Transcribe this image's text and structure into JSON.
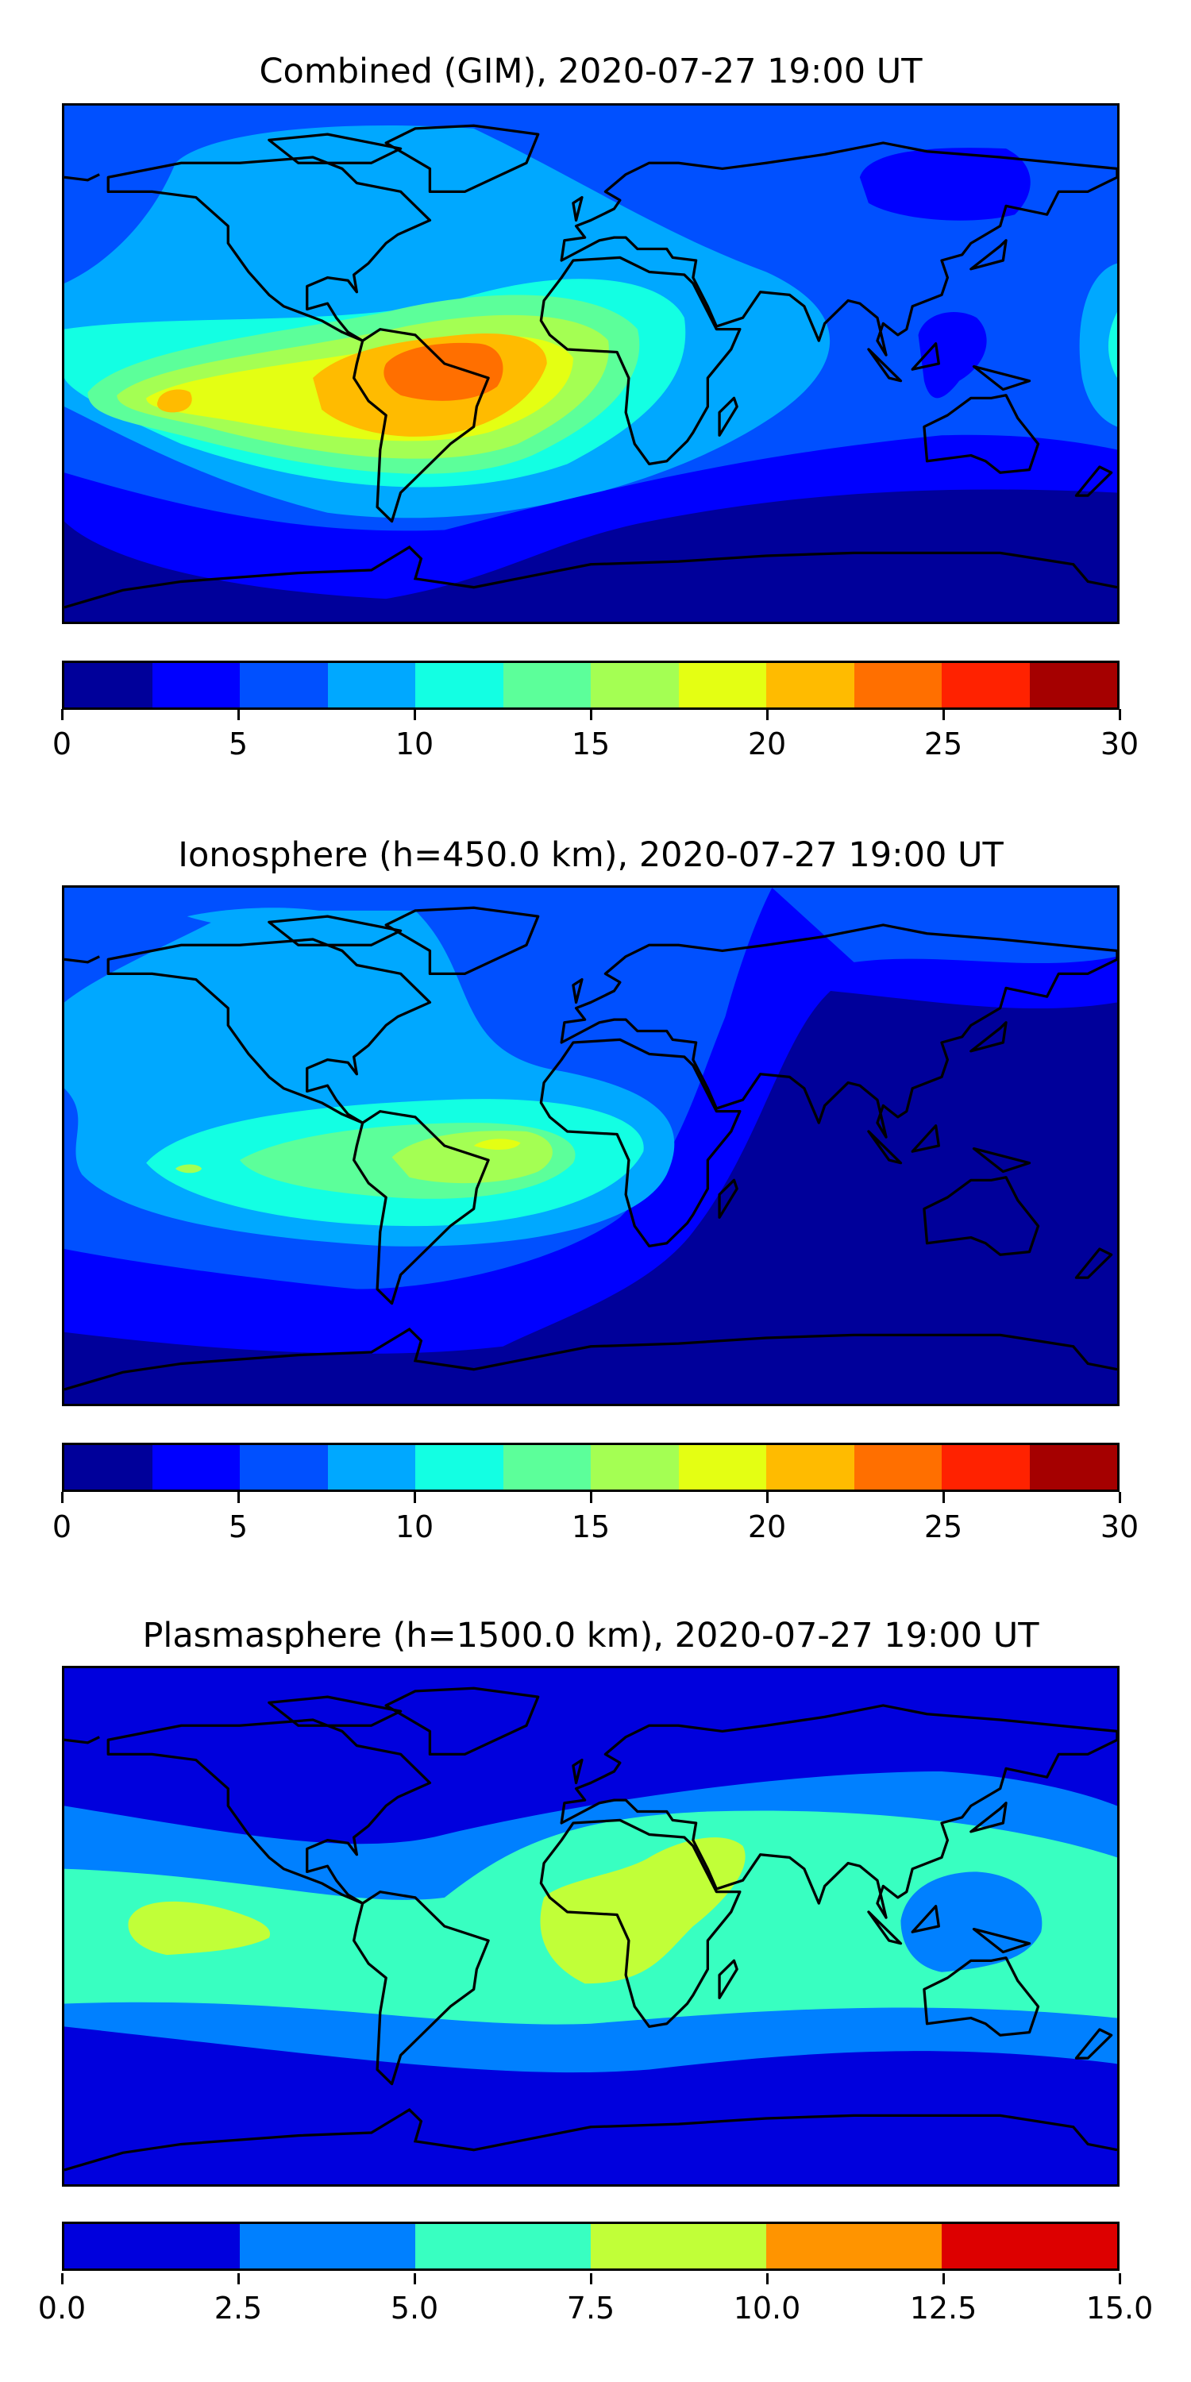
{
  "chart_data": [
    {
      "type": "heatmap",
      "title": "Combined (GIM), 2020-07-27 19:00 UT",
      "xlabel": "",
      "ylabel": "",
      "projection": "PlateCarree world map with coastlines",
      "colorbar": {
        "levels": [
          0,
          2.5,
          5,
          7.5,
          10,
          12.5,
          15,
          17.5,
          20,
          22.5,
          25,
          27.5,
          30
        ],
        "colors": [
          "#00009a",
          "#0000ff",
          "#0050ff",
          "#00a8ff",
          "#13ffe3",
          "#5cff9a",
          "#a4ff53",
          "#e4ff13",
          "#ffbb00",
          "#ff6f00",
          "#ff2200",
          "#a50000"
        ],
        "tick_values": [
          0,
          5,
          10,
          15,
          20,
          25,
          30
        ],
        "tick_labels": [
          "0",
          "5",
          "10",
          "15",
          "20",
          "25",
          "30"
        ],
        "range": [
          0,
          30
        ]
      }
    },
    {
      "type": "heatmap",
      "title": "Ionosphere  (h=450.0 km), 2020-07-27 19:00 UT",
      "xlabel": "",
      "ylabel": "",
      "projection": "PlateCarree world map with coastlines",
      "colorbar": {
        "levels": [
          0,
          2.5,
          5,
          7.5,
          10,
          12.5,
          15,
          17.5,
          20,
          22.5,
          25,
          27.5,
          30
        ],
        "colors": [
          "#00009a",
          "#0000ff",
          "#0050ff",
          "#00a8ff",
          "#13ffe3",
          "#5cff9a",
          "#a4ff53",
          "#e4ff13",
          "#ffbb00",
          "#ff6f00",
          "#ff2200",
          "#a50000"
        ],
        "tick_values": [
          0,
          5,
          10,
          15,
          20,
          25,
          30
        ],
        "tick_labels": [
          "0",
          "5",
          "10",
          "15",
          "20",
          "25",
          "30"
        ],
        "range": [
          0,
          30
        ]
      }
    },
    {
      "type": "heatmap",
      "title": "Plasmasphere (h=1500.0 km), 2020-07-27 19:00 UT",
      "xlabel": "",
      "ylabel": "",
      "projection": "PlateCarree world map with coastlines",
      "colorbar": {
        "levels": [
          0,
          2.5,
          5,
          7.5,
          10,
          12.5,
          15
        ],
        "colors": [
          "#0000dd",
          "#0080ff",
          "#38ffc1",
          "#c1ff38",
          "#ff9400",
          "#dd0000"
        ],
        "tick_values": [
          0,
          2.5,
          5,
          7.5,
          10,
          12.5,
          15
        ],
        "tick_labels": [
          "0.0",
          "2.5",
          "5.0",
          "7.5",
          "10.0",
          "12.5",
          "15.0"
        ],
        "range": [
          0,
          15
        ]
      }
    }
  ]
}
